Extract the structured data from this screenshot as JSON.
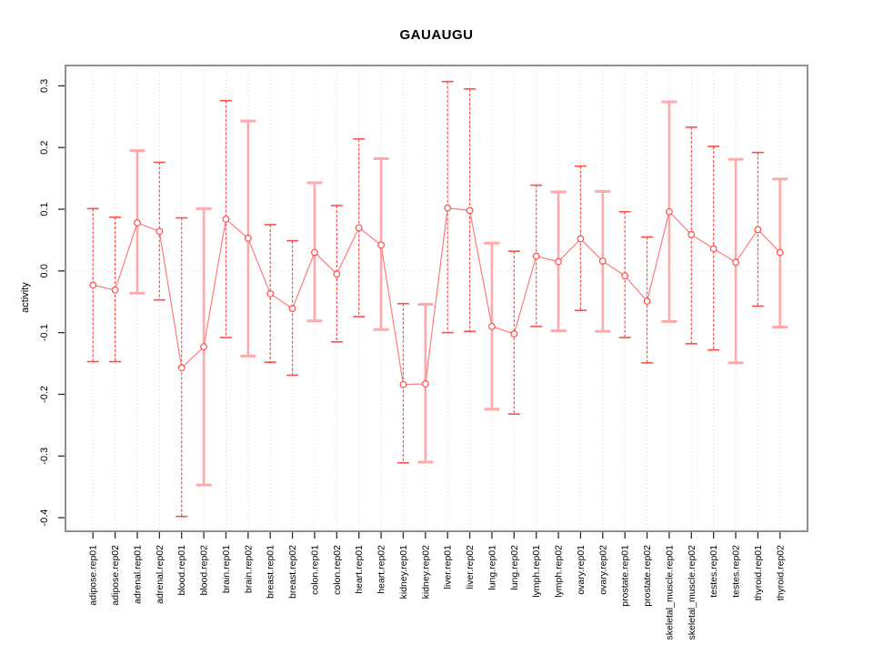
{
  "chart_data": {
    "type": "line",
    "subtype": "points-with-error-bars",
    "title": "GAUAUGU",
    "xlabel": "",
    "ylabel": "activity",
    "legend": "none",
    "grid": "vertical-dotted-gridlines-and-dotted-zero-line",
    "y_ticks": [
      -0.4,
      -0.3,
      -0.2,
      -0.1,
      0.0,
      0.1,
      0.2,
      0.3
    ],
    "ylim": [
      -0.422,
      0.333
    ],
    "xlim": [
      -0.24,
      33.24
    ],
    "categories": [
      "adipose.rep01",
      "adipose.rep02",
      "adrenal.rep01",
      "adrenal.rep02",
      "blood.rep01",
      "blood.rep02",
      "brain.rep01",
      "brain.rep02",
      "breast.rep01",
      "breast.rep02",
      "colon.rep01",
      "colon.rep02",
      "heart.rep01",
      "heart.rep02",
      "kidney.rep01",
      "kidney.rep02",
      "liver.rep01",
      "liver.rep02",
      "lung.rep01",
      "lung.rep02",
      "lymph.rep01",
      "lymph.rep02",
      "ovary.rep01",
      "ovary.rep02",
      "prostate.rep01",
      "prostate.rep02",
      "skeletal_muscle.rep01",
      "skeletal_muscle.rep02",
      "testes.rep01",
      "testes.rep02",
      "thyroid.rep01",
      "thyroid.rep02"
    ],
    "series": [
      {
        "name": "activity",
        "points": [
          {
            "label": "adipose.rep01",
            "value": -0.023,
            "lower": -0.147,
            "upper": 0.101,
            "style": "normal"
          },
          {
            "label": "adipose.rep02",
            "value": -0.031,
            "lower": -0.147,
            "upper": 0.087,
            "style": "normal"
          },
          {
            "label": "adrenal.rep01",
            "value": 0.078,
            "lower": -0.036,
            "upper": 0.195,
            "style": "light"
          },
          {
            "label": "adrenal.rep02",
            "value": 0.064,
            "lower": -0.047,
            "upper": 0.176,
            "style": "normal"
          },
          {
            "label": "blood.rep01",
            "value": -0.157,
            "lower": -0.398,
            "upper": 0.086,
            "style": "normal"
          },
          {
            "label": "blood.rep02",
            "value": -0.123,
            "lower": -0.347,
            "upper": 0.101,
            "style": "light"
          },
          {
            "label": "brain.rep01",
            "value": 0.084,
            "lower": -0.108,
            "upper": 0.276,
            "style": "normal"
          },
          {
            "label": "brain.rep02",
            "value": 0.053,
            "lower": -0.138,
            "upper": 0.243,
            "style": "light"
          },
          {
            "label": "breast.rep01",
            "value": -0.037,
            "lower": -0.148,
            "upper": 0.075,
            "style": "normal"
          },
          {
            "label": "breast.rep02",
            "value": -0.061,
            "lower": -0.169,
            "upper": 0.049,
            "style": "normal"
          },
          {
            "label": "colon.rep01",
            "value": 0.03,
            "lower": -0.081,
            "upper": 0.143,
            "style": "light"
          },
          {
            "label": "colon.rep02",
            "value": -0.005,
            "lower": -0.115,
            "upper": 0.106,
            "style": "normal"
          },
          {
            "label": "heart.rep01",
            "value": 0.07,
            "lower": -0.074,
            "upper": 0.214,
            "style": "normal"
          },
          {
            "label": "heart.rep02",
            "value": 0.042,
            "lower": -0.095,
            "upper": 0.182,
            "style": "light"
          },
          {
            "label": "kidney.rep01",
            "value": -0.184,
            "lower": -0.311,
            "upper": -0.053,
            "style": "normal"
          },
          {
            "label": "kidney.rep02",
            "value": -0.183,
            "lower": -0.31,
            "upper": -0.054,
            "style": "light"
          },
          {
            "label": "liver.rep01",
            "value": 0.102,
            "lower": -0.1,
            "upper": 0.307,
            "style": "normal"
          },
          {
            "label": "liver.rep02",
            "value": 0.098,
            "lower": -0.098,
            "upper": 0.295,
            "style": "normal"
          },
          {
            "label": "lung.rep01",
            "value": -0.09,
            "lower": -0.224,
            "upper": 0.045,
            "style": "light"
          },
          {
            "label": "lung.rep02",
            "value": -0.102,
            "lower": -0.232,
            "upper": 0.032,
            "style": "normal"
          },
          {
            "label": "lymph.rep01",
            "value": 0.024,
            "lower": -0.09,
            "upper": 0.139,
            "style": "normal"
          },
          {
            "label": "lymph.rep02",
            "value": 0.015,
            "lower": -0.097,
            "upper": 0.128,
            "style": "light"
          },
          {
            "label": "ovary.rep01",
            "value": 0.052,
            "lower": -0.064,
            "upper": 0.17,
            "style": "normal"
          },
          {
            "label": "ovary.rep02",
            "value": 0.016,
            "lower": -0.098,
            "upper": 0.129,
            "style": "light"
          },
          {
            "label": "prostate.rep01",
            "value": -0.008,
            "lower": -0.108,
            "upper": 0.096,
            "style": "normal"
          },
          {
            "label": "prostate.rep02",
            "value": -0.049,
            "lower": -0.149,
            "upper": 0.055,
            "style": "normal"
          },
          {
            "label": "skeletal_muscle.rep01",
            "value": 0.096,
            "lower": -0.082,
            "upper": 0.274,
            "style": "light"
          },
          {
            "label": "skeletal_muscle.rep02",
            "value": 0.059,
            "lower": -0.118,
            "upper": 0.233,
            "style": "normal"
          },
          {
            "label": "testes.rep01",
            "value": 0.036,
            "lower": -0.128,
            "upper": 0.202,
            "style": "normal"
          },
          {
            "label": "testes.rep02",
            "value": 0.014,
            "lower": -0.149,
            "upper": 0.181,
            "style": "light"
          },
          {
            "label": "thyroid.rep01",
            "value": 0.067,
            "lower": -0.057,
            "upper": 0.192,
            "style": "normal"
          },
          {
            "label": "thyroid.rep02",
            "value": 0.03,
            "lower": -0.091,
            "upper": 0.149,
            "style": "light"
          }
        ]
      }
    ]
  },
  "colors": {
    "background": "#ffffff",
    "bar_normal": "#ff4d4d",
    "bar_light": "#ffaaaa",
    "connector_line": "#ff7b7b",
    "point_stroke": "#ff4d4d",
    "point_fill": "#ffffff",
    "grid": "#d9d9d9",
    "zero_line": "#dedede",
    "plot_border": "#8f8f8f",
    "tick": "#2b2b2b",
    "text": "#000000"
  }
}
